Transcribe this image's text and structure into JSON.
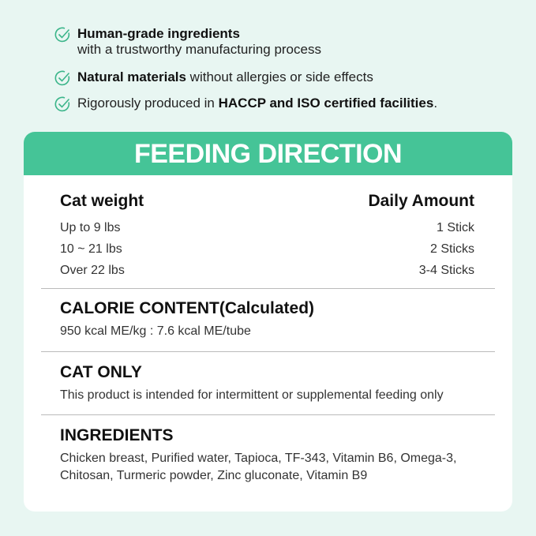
{
  "features": [
    {
      "bold": "Human-grade ingredients",
      "text": "",
      "line2": "with a trustworthy manufacturing process"
    },
    {
      "bold": "Natural materials",
      "text": " without allergies or side effects"
    },
    {
      "pre": "Rigorously produced in ",
      "bold": "HACCP and ISO certified facilities",
      "text": "."
    }
  ],
  "icon": "check-circle-icon",
  "colors": {
    "accent": "#45c497",
    "background": "#e8f6f2"
  },
  "card": {
    "title": "FEEDING DIRECTION",
    "table": {
      "headers": [
        "Cat weight",
        "Daily Amount"
      ],
      "rows": [
        [
          "Up to 9 lbs",
          "1 Stick"
        ],
        [
          "10 ~ 21 lbs",
          "2 Sticks"
        ],
        [
          "Over 22 lbs",
          "3-4 Sticks"
        ]
      ]
    },
    "calorie": {
      "title": "CALORIE CONTENT(Calculated)",
      "text": "950 kcal ME/kg : 7.6 kcal ME/tube"
    },
    "cat_only": {
      "title": "CAT ONLY",
      "text": "This product is intended for intermittent or supplemental feeding only"
    },
    "ingredients": {
      "title": "INGREDIENTS",
      "text": "Chicken breast, Purified water, Tapioca, TF-343, Vitamin B6, Omega-3, Chitosan, Turmeric powder, Zinc gluconate, Vitamin B9"
    }
  }
}
